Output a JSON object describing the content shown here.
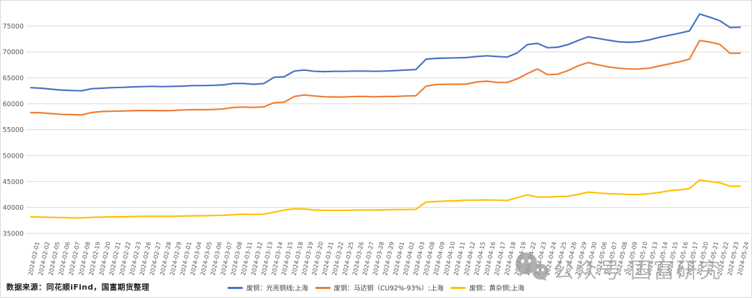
{
  "source_note": "数据来源：同花顺iFind，国富期货整理",
  "watermark": {
    "icon": "wechat-icon",
    "text": "公众号·国富研究"
  },
  "colors": {
    "blue": "#4472C4",
    "orange": "#ED7D31",
    "yellow": "#FFC000",
    "grid": "#D9D9D9",
    "axis_text": "#595959",
    "legend_text": "#3F3F3F",
    "watermark_gray": "#9B9B9B"
  },
  "chart_data": {
    "type": "line",
    "title": "",
    "xlabel": "",
    "ylabel": "",
    "ylim": [
      35000,
      75000
    ],
    "ytick_step": 5000,
    "yticks": [
      35000,
      40000,
      45000,
      50000,
      55000,
      60000,
      65000,
      70000,
      75000
    ],
    "grid": true,
    "legend_position": "bottom",
    "x": [
      "2024-02-01",
      "2024-02-02",
      "2024-02-05",
      "2024-02-06",
      "2024-02-07",
      "2024-02-08",
      "2024-02-19",
      "2024-02-20",
      "2024-02-21",
      "2024-02-22",
      "2024-02-23",
      "2024-02-26",
      "2024-02-27",
      "2024-02-28",
      "2024-02-29",
      "2024-03-01",
      "2024-03-04",
      "2024-03-05",
      "2024-03-06",
      "2024-03-07",
      "2024-03-08",
      "2024-03-11",
      "2024-03-12",
      "2024-03-13",
      "2024-03-14",
      "2024-03-15",
      "2024-03-18",
      "2024-03-19",
      "2024-03-20",
      "2024-03-21",
      "2024-03-22",
      "2024-03-25",
      "2024-03-26",
      "2024-03-27",
      "2024-03-28",
      "2024-03-29",
      "2024-04-01",
      "2024-04-02",
      "2024-04-03",
      "2024-04-08",
      "2024-04-09",
      "2024-04-10",
      "2024-04-11",
      "2024-04-12",
      "2024-04-15",
      "2024-04-16",
      "2024-04-17",
      "2024-04-18",
      "2024-04-19",
      "2024-04-22",
      "2024-04-23",
      "2024-04-24",
      "2024-04-25",
      "2024-04-26",
      "2024-04-29",
      "2024-04-30",
      "2024-05-06",
      "2024-05-07",
      "2024-05-08",
      "2024-05-09",
      "2024-05-10",
      "2024-05-13",
      "2024-05-14",
      "2024-05-15",
      "2024-05-16",
      "2024-05-17",
      "2024-05-20",
      "2024-05-21",
      "2024-05-22",
      "2024-05-23",
      "2024-05-24"
    ],
    "series": [
      {
        "name": "废铜：光亮铜线;上海",
        "color_key": "blue",
        "values": [
          63100,
          63000,
          62800,
          62650,
          62550,
          62500,
          62900,
          63000,
          63100,
          63150,
          63250,
          63300,
          63350,
          63300,
          63350,
          63400,
          63500,
          63500,
          63550,
          63650,
          63900,
          63900,
          63750,
          63900,
          65100,
          65200,
          66300,
          66500,
          66250,
          66200,
          66250,
          66250,
          66300,
          66300,
          66250,
          66300,
          66400,
          66500,
          66600,
          68600,
          68750,
          68800,
          68850,
          68900,
          69100,
          69250,
          69100,
          69000,
          69800,
          71400,
          71650,
          70800,
          70900,
          71400,
          72200,
          72900,
          72600,
          72250,
          71950,
          71850,
          71950,
          72300,
          72800,
          73200,
          73600,
          74050,
          77300,
          76700,
          76000,
          74700,
          74750
        ]
      },
      {
        "name": "废铜：马达铜（CU92%-93%）;上海",
        "color_key": "orange",
        "values": [
          58300,
          58250,
          58100,
          57950,
          57900,
          57850,
          58300,
          58500,
          58550,
          58600,
          58650,
          58700,
          58700,
          58650,
          58700,
          58800,
          58850,
          58850,
          58900,
          59000,
          59300,
          59350,
          59300,
          59400,
          60200,
          60300,
          61400,
          61700,
          61500,
          61350,
          61300,
          61300,
          61400,
          61400,
          61350,
          61400,
          61400,
          61500,
          61550,
          63400,
          63700,
          63750,
          63750,
          63800,
          64200,
          64350,
          64100,
          64100,
          64800,
          65800,
          66700,
          65600,
          65700,
          66400,
          67300,
          67950,
          67500,
          67100,
          66850,
          66700,
          66700,
          66850,
          67280,
          67680,
          68100,
          68600,
          72200,
          71900,
          71450,
          69730,
          69750
        ]
      },
      {
        "name": "废铜：黄杂铜;上海",
        "color_key": "yellow",
        "values": [
          38200,
          38150,
          38100,
          38050,
          38000,
          38000,
          38100,
          38150,
          38200,
          38200,
          38250,
          38300,
          38300,
          38300,
          38300,
          38350,
          38400,
          38400,
          38450,
          38500,
          38600,
          38700,
          38650,
          38700,
          39100,
          39500,
          39750,
          39700,
          39500,
          39450,
          39450,
          39450,
          39500,
          39500,
          39500,
          39550,
          39600,
          39600,
          39650,
          41050,
          41150,
          41250,
          41300,
          41400,
          41400,
          41450,
          41400,
          41350,
          41900,
          42430,
          42000,
          42000,
          42100,
          42150,
          42500,
          42950,
          42800,
          42650,
          42600,
          42500,
          42500,
          42650,
          42870,
          43230,
          43400,
          43630,
          45300,
          45000,
          44770,
          44100,
          44100
        ]
      }
    ]
  }
}
